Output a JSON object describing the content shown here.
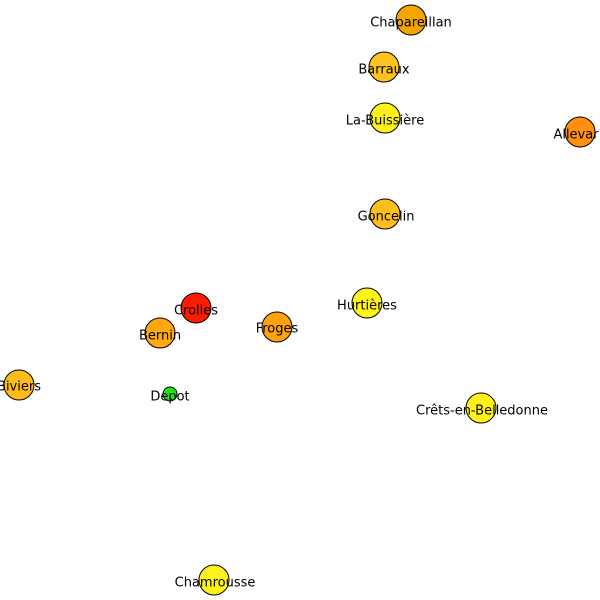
{
  "nodes": [
    {
      "id": "chapareillan",
      "label": "Chapareillan",
      "color": "#f5a500",
      "kind": "town"
    },
    {
      "id": "barraux",
      "label": "Barraux",
      "color": "#ffc21f",
      "kind": "town"
    },
    {
      "id": "la-buissiere",
      "label": "La-Buissière",
      "color": "#fff01a",
      "kind": "town"
    },
    {
      "id": "allevard",
      "label": "Allevar",
      "color": "#ff9010",
      "kind": "town"
    },
    {
      "id": "goncelin",
      "label": "Goncelin",
      "color": "#ffbe1f",
      "kind": "town"
    },
    {
      "id": "hurtieres",
      "label": "Hurtières",
      "color": "#fff51a",
      "kind": "town"
    },
    {
      "id": "crolles",
      "label": "Crolles",
      "color": "#ff1a00",
      "kind": "town"
    },
    {
      "id": "froges",
      "label": "Froges",
      "color": "#ffa20c",
      "kind": "town"
    },
    {
      "id": "bernin",
      "label": "Bernin",
      "color": "#ffa80f",
      "kind": "town"
    },
    {
      "id": "biviers",
      "label": "Biviers",
      "color": "#ffbd1c",
      "kind": "town"
    },
    {
      "id": "depot",
      "label": "Depot",
      "color": "#19e619",
      "kind": "depot"
    },
    {
      "id": "crets-en-belledonne",
      "label": "Crêts-en-Belledonne",
      "color": "#fff21a",
      "kind": "town"
    },
    {
      "id": "chamrousse",
      "label": "Chamrousse",
      "color": "#fff21a",
      "kind": "town"
    }
  ]
}
